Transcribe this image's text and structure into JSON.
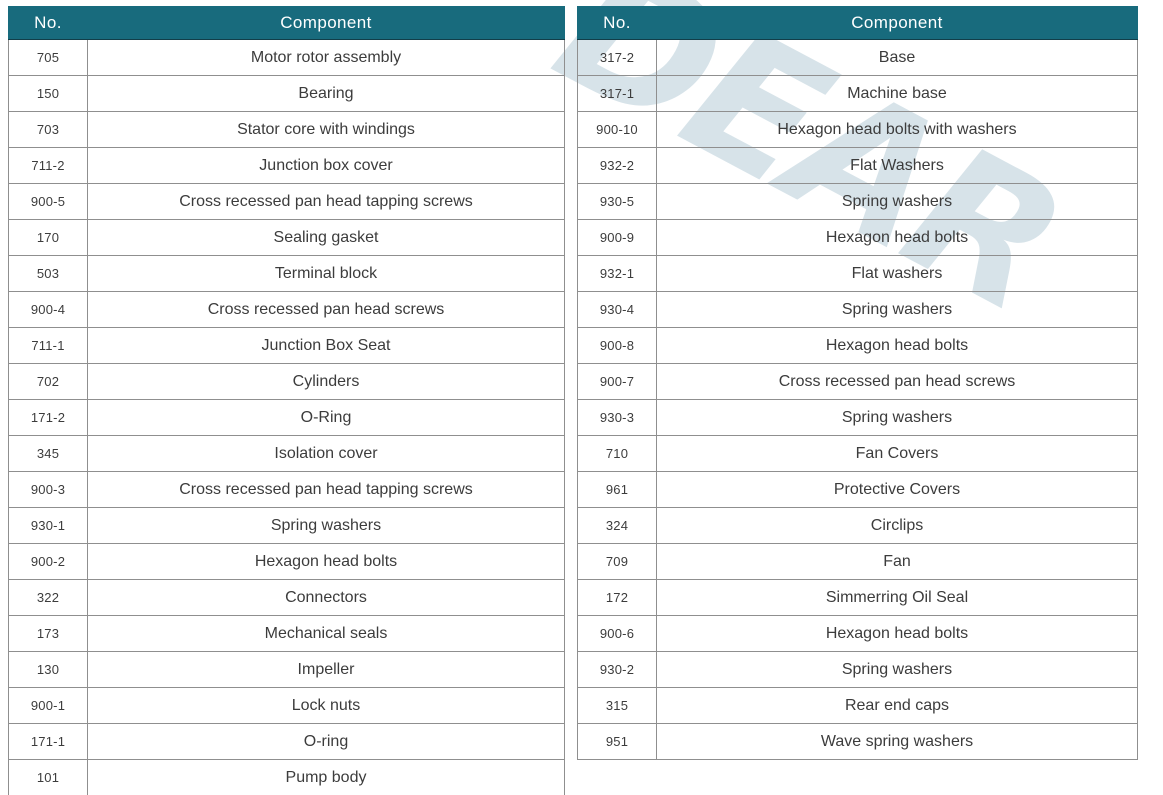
{
  "theme": {
    "page_bg": "#ffffff",
    "header_bg": "#186b7d",
    "header_text": "#ffffff",
    "body_text": "#3c3c3c",
    "grid_line": "#8f8f8f",
    "outer_border": "#6e6e6e",
    "watermark_color": "#b7cdd8"
  },
  "watermark": {
    "text": "DEAR"
  },
  "tables": [
    {
      "id": "left",
      "headers": {
        "no": "No.",
        "component": "Component"
      },
      "rows": [
        {
          "no": "705",
          "component": "Motor rotor assembly"
        },
        {
          "no": "150",
          "component": "Bearing"
        },
        {
          "no": "703",
          "component": "Stator core with windings"
        },
        {
          "no": "711-2",
          "component": "Junction box cover"
        },
        {
          "no": "900-5",
          "component": "Cross recessed pan head tapping screws"
        },
        {
          "no": "170",
          "component": "Sealing gasket"
        },
        {
          "no": "503",
          "component": "Terminal block"
        },
        {
          "no": "900-4",
          "component": "Cross recessed pan head screws"
        },
        {
          "no": "711-1",
          "component": "Junction Box Seat"
        },
        {
          "no": "702",
          "component": "Cylinders"
        },
        {
          "no": "171-2",
          "component": "O-Ring"
        },
        {
          "no": "345",
          "component": "Isolation cover"
        },
        {
          "no": "900-3",
          "component": "Cross recessed pan head tapping screws"
        },
        {
          "no": "930-1",
          "component": "Spring washers"
        },
        {
          "no": "900-2",
          "component": "Hexagon head bolts"
        },
        {
          "no": "322",
          "component": "Connectors"
        },
        {
          "no": "173",
          "component": "Mechanical seals"
        },
        {
          "no": "130",
          "component": "Impeller"
        },
        {
          "no": "900-1",
          "component": "Lock nuts"
        },
        {
          "no": "171-1",
          "component": "O-ring"
        },
        {
          "no": "101",
          "component": "Pump body"
        }
      ]
    },
    {
      "id": "right",
      "headers": {
        "no": "No.",
        "component": "Component"
      },
      "rows": [
        {
          "no": "317-2",
          "component": "Base"
        },
        {
          "no": "317-1",
          "component": "Machine base"
        },
        {
          "no": "900-10",
          "component": "Hexagon head bolts with washers"
        },
        {
          "no": "932-2",
          "component": "Flat Washers"
        },
        {
          "no": "930-5",
          "component": "Spring washers"
        },
        {
          "no": "900-9",
          "component": "Hexagon head bolts"
        },
        {
          "no": "932-1",
          "component": "Flat washers"
        },
        {
          "no": "930-4",
          "component": "Spring washers"
        },
        {
          "no": "900-8",
          "component": "Hexagon head bolts"
        },
        {
          "no": "900-7",
          "component": "Cross recessed pan head screws"
        },
        {
          "no": "930-3",
          "component": "Spring washers"
        },
        {
          "no": "710",
          "component": "Fan Covers"
        },
        {
          "no": "961",
          "component": "Protective Covers"
        },
        {
          "no": "324",
          "component": "Circlips"
        },
        {
          "no": "709",
          "component": "Fan"
        },
        {
          "no": "172",
          "component": "Simmerring Oil Seal"
        },
        {
          "no": "900-6",
          "component": "Hexagon head bolts"
        },
        {
          "no": "930-2",
          "component": "Spring washers"
        },
        {
          "no": "315",
          "component": "Rear end caps"
        },
        {
          "no": "951",
          "component": "Wave spring washers"
        }
      ]
    }
  ]
}
